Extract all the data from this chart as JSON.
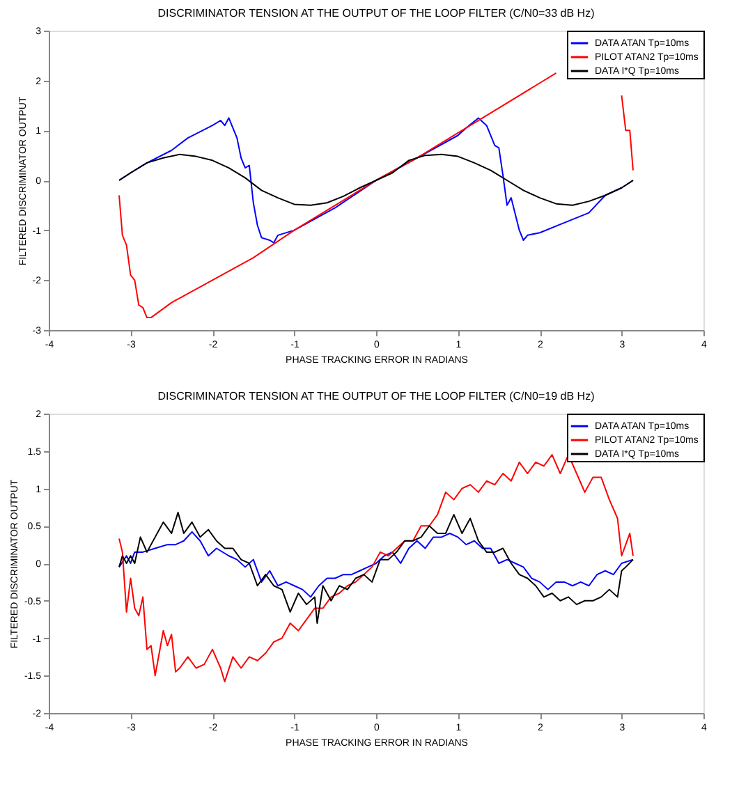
{
  "chart_data": [
    {
      "type": "line",
      "title": "DISCRIMINATOR TENSION AT THE OUTPUT OF THE LOOP FILTER (C/N0=33 dB Hz)",
      "xlabel": "PHASE TRACKING ERROR IN RADIANS",
      "ylabel": "FILTERED DISCRIMINATOR OUTPUT",
      "xlim": [
        -4,
        4
      ],
      "xticks": [
        -4,
        -3,
        -2,
        -1,
        0,
        1,
        2,
        3,
        4
      ],
      "ylim": [
        -3,
        3
      ],
      "yticks": [
        -3,
        -2,
        -1,
        0,
        1,
        2,
        3
      ],
      "grid": false,
      "legend": "top right",
      "line_style": "solid",
      "series": [
        {
          "name": "DATA ATAN Tp=10ms",
          "color": "#0000ff",
          "x": [
            -3.14,
            -3,
            -2.8,
            -2.5,
            -2.3,
            -2.0,
            -1.9,
            -1.85,
            -1.8,
            -1.7,
            -1.65,
            -1.6,
            -1.55,
            -1.5,
            -1.45,
            -1.4,
            -1.3,
            -1.25,
            -1.2,
            -1.0,
            -0.5,
            0,
            0.5,
            1.0,
            1.1,
            1.25,
            1.35,
            1.45,
            1.5,
            1.55,
            1.6,
            1.65,
            1.75,
            1.8,
            1.85,
            2.0,
            2.3,
            2.6,
            2.8,
            3.0,
            3.14
          ],
          "values": [
            0,
            0.15,
            0.35,
            0.6,
            0.85,
            1.1,
            1.2,
            1.1,
            1.25,
            0.85,
            0.45,
            0.25,
            0.3,
            -0.45,
            -0.9,
            -1.15,
            -1.2,
            -1.25,
            -1.1,
            -1.0,
            -0.55,
            0,
            0.45,
            0.9,
            1.05,
            1.25,
            1.1,
            0.7,
            0.65,
            0.1,
            -0.5,
            -0.35,
            -1.0,
            -1.2,
            -1.1,
            -1.05,
            -0.85,
            -0.65,
            -0.3,
            -0.15,
            0
          ]
        },
        {
          "name": "PILOT ATAN2 Tp=10ms",
          "color": "#ff0000",
          "x": [
            -3.14,
            -3.1,
            -3.05,
            -3.0,
            -2.95,
            -2.9,
            -2.85,
            -2.8,
            -2.75,
            -2.5,
            -2.0,
            -1.5,
            -1.0,
            -0.5,
            0,
            0.5,
            1.0,
            1.5,
            2.0,
            2.2,
            2.5,
            2.95,
            3.0,
            3.05,
            3.1,
            3.14
          ],
          "values": [
            -0.3,
            -1.1,
            -1.3,
            -1.9,
            -2.0,
            -2.5,
            -2.55,
            -2.75,
            -2.75,
            -2.45,
            -2.0,
            -1.55,
            -1.0,
            -0.5,
            0,
            0.45,
            0.95,
            1.45,
            1.95,
            2.15,
            null,
            null,
            1.7,
            1.0,
            1.0,
            0.2
          ]
        },
        {
          "name": "DATA I*Q Tp=10ms",
          "color": "#000000",
          "x": [
            -3.14,
            -3,
            -2.8,
            -2.6,
            -2.4,
            -2.2,
            -2,
            -1.8,
            -1.6,
            -1.4,
            -1.2,
            -1.0,
            -0.8,
            -0.6,
            -0.4,
            -0.2,
            0,
            0.2,
            0.4,
            0.6,
            0.8,
            1.0,
            1.2,
            1.4,
            1.6,
            1.8,
            2.0,
            2.2,
            2.4,
            2.6,
            2.8,
            3.0,
            3.14
          ],
          "values": [
            0,
            0.15,
            0.35,
            0.45,
            0.52,
            0.48,
            0.4,
            0.25,
            0.05,
            -0.2,
            -0.35,
            -0.48,
            -0.5,
            -0.45,
            -0.32,
            -0.15,
            0,
            0.15,
            0.4,
            0.5,
            0.52,
            0.48,
            0.35,
            0.2,
            0,
            -0.2,
            -0.35,
            -0.47,
            -0.5,
            -0.42,
            -0.3,
            -0.15,
            0
          ]
        }
      ]
    },
    {
      "type": "line",
      "title": "DISCRIMINATOR TENSION AT THE OUTPUT OF THE LOOP FILTER (C/N0=19 dB Hz)",
      "xlabel": "PHASE TRACKING ERROR IN RADIANS",
      "ylabel": "FILTERED DISCRIMINATOR OUTPUT",
      "xlim": [
        -4,
        4
      ],
      "xticks": [
        -4,
        -3,
        -2,
        -1,
        0,
        1,
        2,
        3,
        4
      ],
      "ylim": [
        -2,
        2
      ],
      "yticks": [
        -2,
        -1.5,
        -1,
        -0.5,
        0,
        0.5,
        1,
        1.5,
        2
      ],
      "grid": false,
      "legend": "top right",
      "line_style": "solid",
      "series": [
        {
          "name": "DATA ATAN Tp=10ms",
          "color": "#0000ff",
          "x": [
            -3.14,
            -3.05,
            -3.0,
            -2.95,
            -2.85,
            -2.7,
            -2.55,
            -2.45,
            -2.35,
            -2.25,
            -2.15,
            -2.05,
            -1.95,
            -1.8,
            -1.7,
            -1.6,
            -1.5,
            -1.4,
            -1.3,
            -1.2,
            -1.1,
            -1.0,
            -0.9,
            -0.8,
            -0.7,
            -0.6,
            -0.5,
            -0.4,
            -0.3,
            -0.2,
            -0.1,
            0,
            0.1,
            0.2,
            0.3,
            0.4,
            0.5,
            0.6,
            0.7,
            0.8,
            0.9,
            1.0,
            1.1,
            1.2,
            1.3,
            1.4,
            1.5,
            1.6,
            1.7,
            1.8,
            1.9,
            2.0,
            2.1,
            2.2,
            2.3,
            2.4,
            2.5,
            2.6,
            2.7,
            2.8,
            2.9,
            3.0,
            3.14
          ],
          "values": [
            -0.05,
            0.1,
            0.0,
            0.15,
            0.15,
            0.2,
            0.25,
            0.25,
            0.3,
            0.42,
            0.3,
            0.1,
            0.2,
            0.1,
            0.05,
            -0.05,
            0.05,
            -0.25,
            -0.1,
            -0.3,
            -0.25,
            -0.3,
            -0.35,
            -0.45,
            -0.3,
            -0.2,
            -0.2,
            -0.15,
            -0.15,
            -0.1,
            -0.05,
            0.0,
            0.1,
            0.15,
            0.0,
            0.2,
            0.3,
            0.2,
            0.35,
            0.35,
            0.4,
            0.35,
            0.25,
            0.3,
            0.2,
            0.2,
            0.0,
            0.05,
            0.0,
            -0.05,
            -0.2,
            -0.25,
            -0.35,
            -0.25,
            -0.25,
            -0.3,
            -0.25,
            -0.3,
            -0.15,
            -0.1,
            -0.15,
            0.0,
            0.05
          ]
        },
        {
          "name": "PILOT ATAN2 Tp=10ms",
          "color": "#ff0000",
          "x": [
            -3.14,
            -3.1,
            -3.05,
            -3.0,
            -2.95,
            -2.9,
            -2.85,
            -2.8,
            -2.75,
            -2.7,
            -2.65,
            -2.6,
            -2.55,
            -2.5,
            -2.45,
            -2.4,
            -2.3,
            -2.2,
            -2.1,
            -2.0,
            -1.9,
            -1.85,
            -1.75,
            -1.65,
            -1.55,
            -1.45,
            -1.35,
            -1.25,
            -1.15,
            -1.05,
            -0.95,
            -0.85,
            -0.75,
            -0.65,
            -0.55,
            -0.45,
            -0.35,
            -0.25,
            -0.15,
            -0.05,
            0.05,
            0.15,
            0.25,
            0.35,
            0.45,
            0.55,
            0.65,
            0.75,
            0.85,
            0.95,
            1.05,
            1.15,
            1.25,
            1.35,
            1.45,
            1.55,
            1.65,
            1.75,
            1.85,
            1.95,
            2.05,
            2.15,
            2.25,
            2.35,
            2.45,
            2.55,
            2.65,
            2.75,
            2.85,
            2.95,
            3.0,
            3.05,
            3.1,
            3.14
          ],
          "values": [
            0.33,
            0.15,
            -0.65,
            -0.2,
            -0.6,
            -0.7,
            -0.45,
            -1.15,
            -1.1,
            -1.5,
            -1.2,
            -0.9,
            -1.1,
            -0.95,
            -1.45,
            -1.4,
            -1.25,
            -1.4,
            -1.35,
            -1.15,
            -1.4,
            -1.58,
            -1.25,
            -1.4,
            -1.25,
            -1.3,
            -1.2,
            -1.05,
            -1.0,
            -0.8,
            -0.9,
            -0.75,
            -0.6,
            -0.6,
            -0.45,
            -0.4,
            -0.3,
            -0.25,
            -0.15,
            -0.05,
            0.15,
            0.1,
            0.2,
            0.3,
            0.3,
            0.5,
            0.5,
            0.65,
            0.95,
            0.85,
            1.0,
            1.05,
            0.95,
            1.1,
            1.05,
            1.2,
            1.1,
            1.35,
            1.2,
            1.35,
            1.3,
            1.45,
            1.2,
            1.45,
            1.2,
            0.95,
            1.15,
            1.15,
            0.85,
            0.6,
            0.1,
            0.25,
            0.4,
            0.1
          ]
        },
        {
          "name": "DATA I*Q Tp=10ms",
          "color": "#000000",
          "x": [
            -3.14,
            -3.1,
            -3.05,
            -3.0,
            -2.95,
            -2.88,
            -2.8,
            -2.7,
            -2.6,
            -2.5,
            -2.42,
            -2.35,
            -2.25,
            -2.15,
            -2.05,
            -1.95,
            -1.85,
            -1.75,
            -1.65,
            -1.55,
            -1.45,
            -1.35,
            -1.25,
            -1.15,
            -1.05,
            -0.95,
            -0.85,
            -0.75,
            -0.72,
            -0.65,
            -0.55,
            -0.45,
            -0.35,
            -0.25,
            -0.15,
            -0.05,
            0.05,
            0.15,
            0.25,
            0.35,
            0.45,
            0.55,
            0.65,
            0.75,
            0.85,
            0.95,
            1.05,
            1.15,
            1.25,
            1.35,
            1.45,
            1.55,
            1.65,
            1.75,
            1.85,
            1.95,
            2.05,
            2.15,
            2.25,
            2.35,
            2.45,
            2.55,
            2.65,
            2.75,
            2.85,
            2.95,
            3.0,
            3.05,
            3.14
          ],
          "values": [
            -0.05,
            0.1,
            0.0,
            0.1,
            0.0,
            0.35,
            0.15,
            0.35,
            0.55,
            0.4,
            0.68,
            0.4,
            0.55,
            0.35,
            0.45,
            0.3,
            0.2,
            0.2,
            0.05,
            0.0,
            -0.3,
            -0.15,
            -0.3,
            -0.35,
            -0.65,
            -0.4,
            -0.55,
            -0.45,
            -0.8,
            -0.3,
            -0.5,
            -0.3,
            -0.35,
            -0.2,
            -0.15,
            -0.25,
            0.05,
            0.05,
            0.15,
            0.3,
            0.3,
            0.35,
            0.5,
            0.4,
            0.4,
            0.65,
            0.4,
            0.6,
            0.3,
            0.15,
            0.15,
            0.2,
            0.0,
            -0.15,
            -0.2,
            -0.3,
            -0.45,
            -0.4,
            -0.5,
            -0.45,
            -0.55,
            -0.5,
            -0.5,
            -0.45,
            -0.35,
            -0.45,
            -0.1,
            -0.05,
            0.05
          ]
        }
      ]
    }
  ]
}
